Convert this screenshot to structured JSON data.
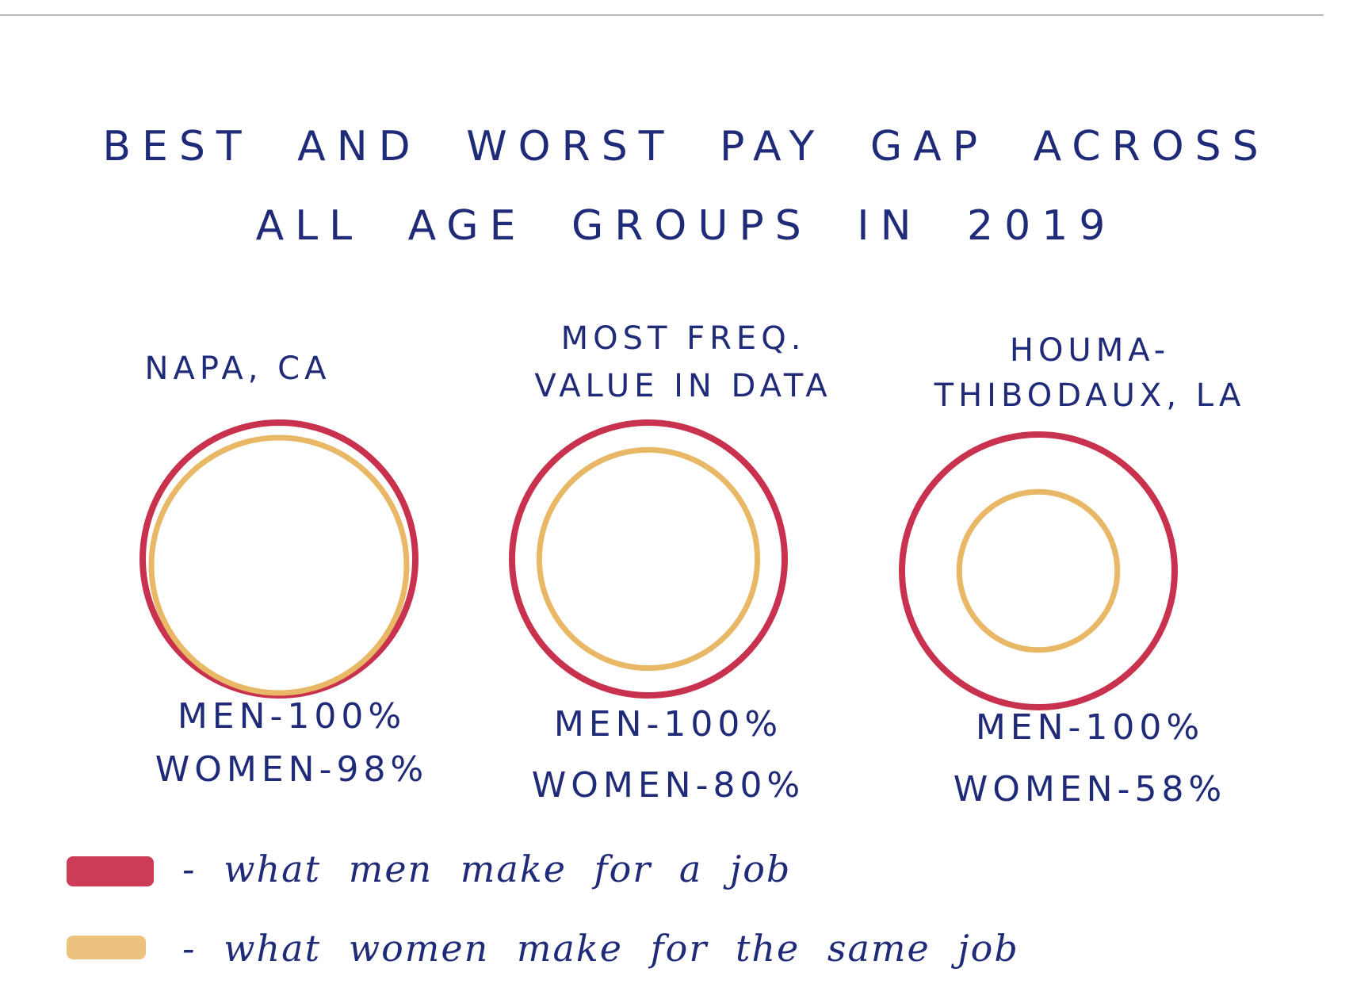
{
  "chart_data": {
    "type": "nested-circles",
    "title_lines": [
      "BEST AND WORST PAY GAP ACROSS",
      "ALL AGE GROUPS IN 2019"
    ],
    "colors": {
      "men": "#c9324e",
      "women": "#e8b867"
    },
    "panels": [
      {
        "label_lines": [
          "NAPA, CA"
        ],
        "men_value": 100,
        "women_value": 98,
        "men_text": "MEN-100%",
        "women_text": "WOMEN-98%"
      },
      {
        "label_lines": [
          "MOST FREQ.",
          "VALUE IN DATA"
        ],
        "men_value": 100,
        "women_value": 80,
        "men_text": "MEN-100%",
        "women_text": "WOMEN-80%"
      },
      {
        "label_lines": [
          "HOUMA-",
          "THIBODAUX, LA"
        ],
        "men_value": 100,
        "women_value": 58,
        "men_text": "MEN-100%",
        "women_text": "WOMEN-58%"
      }
    ],
    "legend": [
      {
        "series": "men",
        "text": "- what men make for a job"
      },
      {
        "series": "women",
        "text": "- what women make for the same job"
      }
    ]
  }
}
